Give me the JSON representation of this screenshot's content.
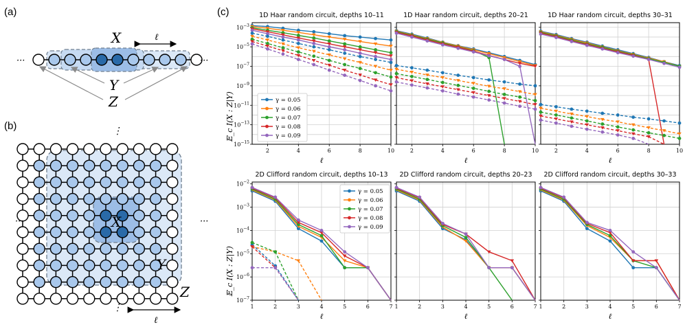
{
  "panel_labels": {
    "a": "(a)",
    "b": "(b)",
    "c": "(c)"
  },
  "diagram": {
    "a": {
      "X": "X",
      "ell": "ℓ",
      "Y": "Y",
      "Z": "Z",
      "dots": "···"
    },
    "b": {
      "X": "X",
      "Y": "Y",
      "Z": "Z",
      "ell": "ℓ",
      "dots_v": "⋮",
      "dots_h": "···"
    }
  },
  "colors": {
    "gamma_0.05": "#1f77b4",
    "gamma_0.06": "#ff7f0e",
    "gamma_0.07": "#2ca02c",
    "gamma_0.08": "#d62728",
    "gamma_0.09": "#9467bd",
    "light_blue": "#a9c8ec",
    "dark_blue": "#2a6aa8",
    "region_fill": "#dbe8f7"
  },
  "legend": {
    "entries": [
      "γ = 0.05",
      "γ = 0.06",
      "γ = 0.07",
      "γ = 0.08",
      "γ = 0.09"
    ]
  },
  "ylabel": "𝔼_c I(X : Z|Y)",
  "xlabel": "ℓ",
  "chart_data": [
    {
      "type": "line",
      "title": "1D Haar random circuit, depths 10–11",
      "xlabel": "ℓ",
      "ylabel": "E_c I(X:Z|Y)",
      "yscale": "log",
      "xlim": [
        1,
        10
      ],
      "ylim": [
        1e-15,
        0.003
      ],
      "xticks": [
        2,
        4,
        6,
        8,
        10
      ],
      "yticks_exp": [
        -15,
        -13,
        -11,
        -9,
        -7,
        -5,
        -3
      ],
      "x": [
        1,
        2,
        3,
        4,
        5,
        6,
        7,
        8,
        9,
        10
      ],
      "series": [
        {
          "name": "γ = 0.05",
          "style": "solid",
          "values": [
            0.0015,
            0.0012,
            0.0008,
            0.0005,
            0.00035,
            0.00022,
            0.00014,
            0.0001,
            7e-05,
            5e-05
          ]
        },
        {
          "name": "γ = 0.06",
          "style": "solid",
          "values": [
            0.0012,
            0.0008,
            0.0005,
            0.0003,
            0.00017,
            0.0001,
            6e-05,
            3.5e-05,
            2e-05,
            1.2e-05
          ]
        },
        {
          "name": "γ = 0.07",
          "style": "solid",
          "values": [
            0.0009,
            0.0005,
            0.00028,
            0.00015,
            8e-05,
            4e-05,
            2e-05,
            1e-05,
            5e-06,
            2.5e-06
          ]
        },
        {
          "name": "γ = 0.08",
          "style": "solid",
          "values": [
            0.0007,
            0.00035,
            0.00017,
            8e-05,
            4e-05,
            2e-05,
            1e-05,
            5e-06,
            2.5e-06,
            1.2e-06
          ]
        },
        {
          "name": "γ = 0.09",
          "style": "solid",
          "values": [
            0.0005,
            0.00022,
            0.0001,
            5e-05,
            2.2e-05,
            1e-05,
            5e-06,
            2.2e-06,
            1e-06,
            5e-07
          ]
        },
        {
          "name": "",
          "style": "dashed",
          "color_of": "γ = 0.05",
          "values": [
            0.00025,
            0.00012,
            5e-05,
            2.2e-05,
            1e-05,
            5e-06,
            2.2e-06,
            1e-06,
            5e-07,
            2.5e-07
          ]
        },
        {
          "name": "",
          "style": "dashed",
          "color_of": "γ = 0.06",
          "values": [
            0.00012,
            5e-05,
            2e-05,
            8e-06,
            3.5e-06,
            1.5e-06,
            6e-07,
            2.5e-07,
            1e-07,
            4e-08
          ]
        },
        {
          "name": "",
          "style": "dashed",
          "color_of": "γ = 0.07",
          "values": [
            6e-05,
            2.2e-05,
            8e-06,
            3e-06,
            1.1e-06,
            4e-07,
            1.5e-07,
            6e-08,
            2.2e-08,
            8e-09
          ]
        },
        {
          "name": "",
          "style": "dashed",
          "color_of": "γ = 0.08",
          "values": [
            3.5e-05,
            1.2e-05,
            4e-06,
            1.3e-06,
            4e-07,
            1.3e-07,
            4e-08,
            1.3e-08,
            4e-09,
            1.3e-09
          ]
        },
        {
          "name": "",
          "style": "dashed",
          "color_of": "γ = 0.09",
          "values": [
            2e-05,
            6e-06,
            1.8e-06,
            5e-07,
            1.5e-07,
            4e-08,
            1.2e-08,
            3.5e-09,
            1e-09,
            3e-10
          ]
        }
      ]
    },
    {
      "type": "line",
      "title": "1D Haar random circuit, depths 20–21",
      "xlabel": "ℓ",
      "yscale": "log",
      "xlim": [
        1,
        10
      ],
      "ylim": [
        1e-15,
        0.003
      ],
      "xticks": [
        2,
        4,
        6,
        8,
        10
      ],
      "x": [
        1,
        2,
        3,
        4,
        5,
        6,
        7,
        8,
        9,
        10
      ],
      "series": [
        {
          "name": "γ = 0.05",
          "style": "solid",
          "values": [
            0.00045,
            0.0002,
            8e-05,
            3e-05,
            1.3e-05,
            6e-06,
            2.5e-06,
            1e-06,
            4e-07,
            1.5e-07
          ]
        },
        {
          "name": "γ = 0.06",
          "style": "solid",
          "values": [
            0.0004,
            0.00017,
            7e-05,
            2.8e-05,
            1.2e-05,
            5e-06,
            2e-06,
            8e-07,
            3e-07,
            1.2e-07
          ]
        },
        {
          "name": "γ = 0.07",
          "style": "solid",
          "values": [
            0.00035,
            0.00015,
            6e-05,
            2.5e-05,
            1e-05,
            4e-06,
            8e-07,
            null,
            null,
            null
          ]
        },
        {
          "name": "γ = 0.08",
          "style": "solid",
          "values": [
            0.0003,
            0.00013,
            5e-05,
            2e-05,
            9e-06,
            3.5e-06,
            1.3e-06,
            5e-07,
            2e-07,
            1e-07
          ]
        },
        {
          "name": "γ = 0.09",
          "style": "solid",
          "values": [
            0.00025,
            0.0001,
            4e-05,
            1.6e-05,
            7e-06,
            3e-06,
            1.2e-06,
            5e-07,
            1e-07,
            null
          ]
        },
        {
          "name": "",
          "style": "dashed",
          "color_of": "γ = 0.05",
          "values": [
            1.2e-07,
            7e-08,
            4e-08,
            2.2e-08,
            1.2e-08,
            7e-09,
            4e-09,
            2.5e-09,
            1.5e-09,
            1e-09
          ]
        },
        {
          "name": "",
          "style": "dashed",
          "color_of": "γ = 0.06",
          "values": [
            5e-08,
            2.5e-08,
            1.3e-08,
            7e-09,
            3.5e-09,
            1.8e-09,
            9e-10,
            5e-10,
            2.5e-10,
            1.3e-10
          ]
        },
        {
          "name": "",
          "style": "dashed",
          "color_of": "γ = 0.07",
          "values": [
            1.8e-08,
            9e-09,
            4.5e-09,
            2.2e-09,
            1.1e-09,
            5.5e-10,
            2.7e-10,
            1.3e-10,
            7e-11,
            3e-11
          ]
        },
        {
          "name": "",
          "style": "dashed",
          "color_of": "γ = 0.08",
          "values": [
            7e-09,
            3.3e-09,
            1.6e-09,
            8e-10,
            4e-10,
            2e-10,
            1e-10,
            5e-11,
            2.5e-11,
            1.2e-11
          ]
        },
        {
          "name": "",
          "style": "dashed",
          "color_of": "γ = 0.09",
          "values": [
            2.5e-09,
            1.2e-09,
            6e-10,
            3e-10,
            1.4e-10,
            7e-11,
            3.5e-11,
            1.7e-11,
            8e-12,
            4e-12
          ]
        }
      ]
    },
    {
      "type": "line",
      "title": "1D Haar random circuit, depths 30–31",
      "xlabel": "ℓ",
      "yscale": "log",
      "xlim": [
        1,
        10
      ],
      "ylim": [
        1e-15,
        0.003
      ],
      "xticks": [
        2,
        4,
        6,
        8,
        10
      ],
      "x": [
        1,
        2,
        3,
        4,
        5,
        6,
        7,
        8,
        9,
        10
      ],
      "series": [
        {
          "name": "γ = 0.05",
          "style": "solid",
          "values": [
            0.0004,
            0.00018,
            7e-05,
            3e-05,
            1.2e-05,
            5e-06,
            2e-06,
            8e-07,
            3e-07,
            1.2e-07
          ]
        },
        {
          "name": "γ = 0.06",
          "style": "solid",
          "values": [
            0.00035,
            0.00015,
            6e-05,
            2.5e-05,
            1e-05,
            4e-06,
            1.7e-06,
            7e-07,
            3e-07,
            1e-07
          ]
        },
        {
          "name": "γ = 0.07",
          "style": "solid",
          "values": [
            0.0003,
            0.00013,
            5e-05,
            2e-05,
            9e-06,
            3.5e-06,
            1.5e-06,
            6e-07,
            2.5e-07,
            1e-07
          ]
        },
        {
          "name": "γ = 0.08",
          "style": "solid",
          "values": [
            0.00025,
            0.00011,
            4e-05,
            1.7e-05,
            7e-06,
            3e-06,
            1.3e-06,
            5e-07,
            null,
            null
          ]
        },
        {
          "name": "γ = 0.09",
          "style": "solid",
          "values": [
            0.0002,
            9e-05,
            3.5e-05,
            1.4e-05,
            6e-06,
            2.5e-06,
            1.1e-06,
            5e-07,
            2e-07,
            8e-08
          ]
        },
        {
          "name": "",
          "style": "dashed",
          "color_of": "γ = 0.05",
          "values": [
            1.2e-11,
            7e-12,
            4e-12,
            2.5e-12,
            1.5e-12,
            1e-12,
            6e-13,
            4e-13,
            2.5e-13,
            1.5e-13
          ]
        },
        {
          "name": "",
          "style": "dashed",
          "color_of": "γ = 0.06",
          "values": [
            5e-12,
            2.5e-12,
            1.3e-12,
            7e-13,
            3.5e-13,
            2e-13,
            1e-13,
            5e-14,
            2.5e-14,
            1.2e-14
          ]
        },
        {
          "name": "",
          "style": "dashed",
          "color_of": "γ = 0.07",
          "values": [
            2e-12,
            1e-12,
            5e-13,
            2.5e-13,
            1.2e-13,
            6e-14,
            3e-14,
            1.5e-14,
            8e-15,
            4e-15
          ]
        },
        {
          "name": "",
          "style": "dashed",
          "color_of": "γ = 0.08",
          "values": [
            8e-13,
            4e-13,
            2e-13,
            1e-13,
            5e-14,
            2.5e-14,
            1.2e-14,
            6e-15,
            null,
            null
          ]
        },
        {
          "name": "",
          "style": "dashed",
          "color_of": "γ = 0.09",
          "values": [
            3e-13,
            1.5e-13,
            7e-14,
            3.5e-14,
            1.8e-14,
            9e-15,
            4e-15,
            null,
            null,
            null
          ]
        }
      ]
    },
    {
      "type": "line",
      "title": "2D Clifford random circuit, depths 10–13",
      "xlabel": "ℓ",
      "ylabel": "E_c I(X:Z|Y)",
      "yscale": "log",
      "xlim": [
        1,
        7
      ],
      "ylim": [
        1e-07,
        0.012
      ],
      "xticks": [
        1,
        2,
        3,
        4,
        5,
        6,
        7
      ],
      "yticks_exp": [
        -7,
        -6,
        -5,
        -4,
        -3,
        -2
      ],
      "x": [
        1,
        2,
        3,
        4,
        5,
        6,
        7
      ],
      "series": [
        {
          "name": "γ = 0.05",
          "style": "solid",
          "values": [
            0.005,
            0.0018,
            0.00012,
            3.5e-05,
            2.5e-06,
            2.5e-06,
            null
          ]
        },
        {
          "name": "γ = 0.06",
          "style": "solid",
          "values": [
            0.0055,
            0.002,
            0.00015,
            5e-05,
            5e-06,
            2.5e-06,
            null
          ]
        },
        {
          "name": "γ = 0.07",
          "style": "solid",
          "values": [
            0.006,
            0.0022,
            0.00018,
            6e-05,
            2.5e-06,
            2.5e-06,
            null
          ]
        },
        {
          "name": "γ = 0.08",
          "style": "solid",
          "values": [
            0.0065,
            0.0025,
            0.00022,
            8e-05,
            8e-06,
            2.5e-06,
            null
          ]
        },
        {
          "name": "γ = 0.09",
          "style": "solid",
          "values": [
            0.007,
            0.0027,
            0.00028,
            0.0001,
            1.2e-05,
            2.5e-06,
            null
          ]
        },
        {
          "name": "",
          "style": "dashed",
          "color_of": "γ = 0.05",
          "values": [
            2.5e-05,
            3e-06,
            null,
            null,
            null,
            null,
            null
          ]
        },
        {
          "name": "",
          "style": "dashed",
          "color_of": "γ = 0.06",
          "values": [
            2e-05,
            1.2e-05,
            5e-06,
            null,
            null,
            null,
            null
          ]
        },
        {
          "name": "",
          "style": "dashed",
          "color_of": "γ = 0.07",
          "values": [
            3e-05,
            1.2e-05,
            null,
            null,
            null,
            null,
            null
          ]
        },
        {
          "name": "",
          "style": "dashed",
          "color_of": "γ = 0.08",
          "values": [
            2e-05,
            2.5e-06,
            null,
            null,
            null,
            null,
            null
          ]
        },
        {
          "name": "",
          "style": "dashed",
          "color_of": "γ = 0.09",
          "values": [
            2.5e-06,
            2.5e-06,
            null,
            null,
            null,
            null,
            null
          ]
        }
      ]
    },
    {
      "type": "line",
      "title": "2D Clifford random circuit, depths 20–23",
      "xlabel": "ℓ",
      "yscale": "log",
      "xlim": [
        1,
        7
      ],
      "ylim": [
        1e-07,
        0.012
      ],
      "xticks": [
        1,
        2,
        3,
        4,
        5,
        6,
        7
      ],
      "x": [
        1,
        2,
        3,
        4,
        5,
        6,
        7
      ],
      "series": [
        {
          "name": "γ = 0.05",
          "style": "solid",
          "values": [
            0.005,
            0.0018,
            0.00012,
            4e-05,
            2.5e-06,
            2.5e-06,
            null
          ]
        },
        {
          "name": "γ = 0.06",
          "style": "solid",
          "values": [
            0.0055,
            0.002,
            0.00014,
            3.5e-05,
            2.5e-06,
            2.5e-06,
            null
          ]
        },
        {
          "name": "γ = 0.07",
          "style": "solid",
          "values": [
            0.006,
            0.0022,
            0.00016,
            5e-05,
            2.5e-06,
            null,
            null
          ]
        },
        {
          "name": "γ = 0.08",
          "style": "solid",
          "values": [
            0.0065,
            0.0025,
            0.00018,
            7e-05,
            1.2e-05,
            5e-06,
            null
          ]
        },
        {
          "name": "γ = 0.09",
          "style": "solid",
          "values": [
            0.007,
            0.0027,
            0.0002,
            7e-05,
            2.5e-06,
            2.5e-06,
            null
          ]
        }
      ]
    },
    {
      "type": "line",
      "title": "2D Clifford random circuit, depths 30–33",
      "xlabel": "ℓ",
      "yscale": "log",
      "xlim": [
        1,
        7
      ],
      "ylim": [
        1e-07,
        0.012
      ],
      "xticks": [
        1,
        2,
        3,
        4,
        5,
        6,
        7
      ],
      "x": [
        1,
        2,
        3,
        4,
        5,
        6,
        7
      ],
      "series": [
        {
          "name": "γ = 0.05",
          "style": "solid",
          "values": [
            0.005,
            0.0018,
            0.00012,
            3.5e-05,
            2.5e-06,
            2.5e-06,
            null
          ]
        },
        {
          "name": "γ = 0.06",
          "style": "solid",
          "values": [
            0.0055,
            0.002,
            0.00016,
            5e-05,
            5e-06,
            5e-06,
            null
          ]
        },
        {
          "name": "γ = 0.07",
          "style": "solid",
          "values": [
            0.006,
            0.0022,
            0.00018,
            6e-05,
            5e-06,
            2.5e-06,
            null
          ]
        },
        {
          "name": "γ = 0.08",
          "style": "solid",
          "values": [
            0.0065,
            0.0025,
            0.0002,
            8e-05,
            5e-06,
            5e-06,
            null
          ]
        },
        {
          "name": "γ = 0.09",
          "style": "solid",
          "values": [
            0.007,
            0.0027,
            0.00022,
            0.0001,
            1.2e-05,
            2.5e-06,
            null
          ]
        }
      ]
    }
  ]
}
